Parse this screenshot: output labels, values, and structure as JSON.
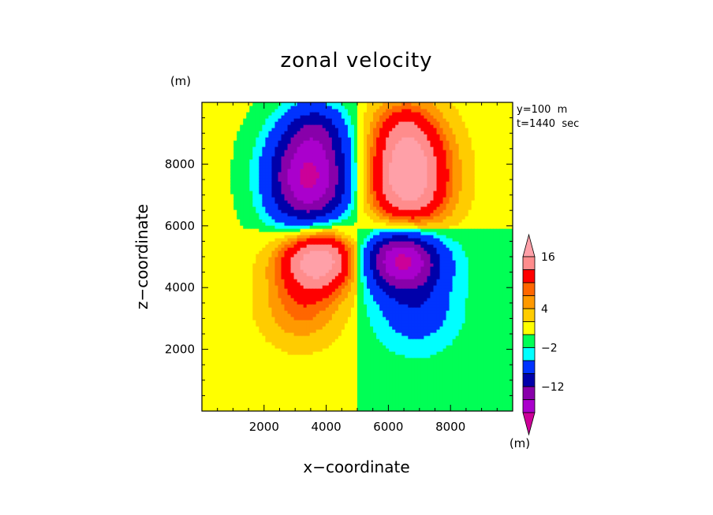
{
  "chart_data": {
    "type": "heatmap",
    "title": "zonal velocity",
    "xlabel": "x−coordinate",
    "ylabel": "z−coordinate",
    "x_unit": "(m)",
    "y_unit": "(m)",
    "annotations": [
      "y=100  m",
      "t=1440  sec"
    ],
    "xlim": [
      0,
      10000
    ],
    "ylim": [
      0,
      10000
    ],
    "x_ticks": [
      2000,
      4000,
      6000,
      8000
    ],
    "y_ticks": [
      2000,
      4000,
      6000,
      8000
    ],
    "x_tick_labels": [
      "2000",
      "4000",
      "6000",
      "8000"
    ],
    "y_tick_labels": [
      "2000",
      "4000",
      "6000",
      "8000"
    ],
    "colorbar": {
      "tick_labels": [
        "16",
        "4",
        "−2",
        "−12"
      ],
      "levels": [
        {
          "min": 16,
          "max": null,
          "color": "#ffa0a8"
        },
        {
          "min": 12,
          "max": 16,
          "color": "#ff8c8c"
        },
        {
          "min": 8,
          "max": 12,
          "color": "#ff0000"
        },
        {
          "min": 6,
          "max": 8,
          "color": "#ff6600"
        },
        {
          "min": 4,
          "max": 6,
          "color": "#ff9900"
        },
        {
          "min": 2,
          "max": 4,
          "color": "#ffcc00"
        },
        {
          "min": 0,
          "max": 2,
          "color": "#ffff00"
        },
        {
          "min": -2,
          "max": 0,
          "color": "#00ff55"
        },
        {
          "min": -4,
          "max": -2,
          "color": "#00ffff"
        },
        {
          "min": -8,
          "max": -4,
          "color": "#0033ff"
        },
        {
          "min": -12,
          "max": -8,
          "color": "#0000aa"
        },
        {
          "min": -16,
          "max": -12,
          "color": "#8800aa"
        },
        {
          "min": -20,
          "max": -16,
          "color": "#aa00cc"
        },
        {
          "min": null,
          "max": -20,
          "color": "#cc0099"
        }
      ]
    },
    "features": [
      {
        "label": "upper negative cell",
        "x": 3500,
        "z": 7600,
        "peak": -20
      },
      {
        "label": "upper positive cell",
        "x": 6600,
        "z": 7600,
        "peak": 18
      },
      {
        "label": "lower positive cell",
        "x": 3600,
        "z": 4900,
        "peak": 18
      },
      {
        "label": "lower negative cell",
        "x": 6500,
        "z": 4900,
        "peak": -20
      }
    ],
    "background_quadrants": {
      "upper_left": 0.5,
      "upper_right": 1.0,
      "lower_left": 1.0,
      "lower_right": -1.0
    }
  }
}
